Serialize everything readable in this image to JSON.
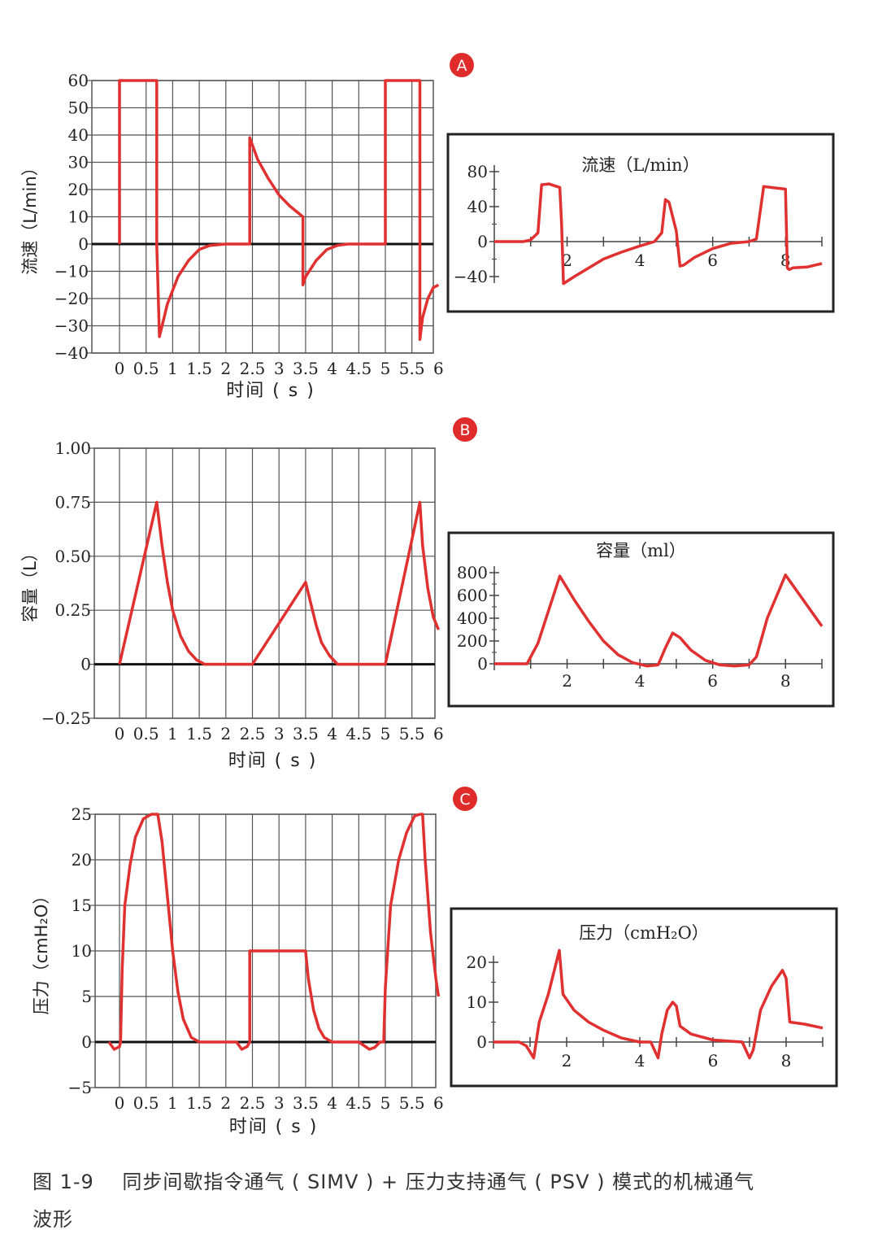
{
  "colors": {
    "trace": "#e03030",
    "grid": "#555555",
    "zero": "#111111",
    "badge": "#e02b2b",
    "text": "#222222"
  },
  "caption": {
    "label": "图 1-9",
    "line1": "同步间歇指令通气 ( SIMV ) + 压力支持通气 ( PSV ) 模式的机械通气",
    "line2": "波形"
  },
  "chart_data": [
    {
      "id": "A-left",
      "badge": "A",
      "type": "line",
      "title": "",
      "xlabel": "时间 ( s )",
      "ylabel": "流速（L/min）",
      "xlim": [
        -0.5,
        6
      ],
      "ylim": [
        -40,
        60
      ],
      "xticks": [
        0,
        0.5,
        1,
        1.5,
        2,
        2.5,
        3,
        3.5,
        4,
        4.5,
        5,
        5.5,
        6
      ],
      "yticks": [
        60,
        50,
        40,
        30,
        20,
        10,
        0,
        -10,
        -20,
        -30,
        -40
      ],
      "ytick_labels": [
        "60",
        "50",
        "40",
        "30",
        "20",
        "10",
        "0",
        "−10",
        "−20",
        "−30",
        "−40"
      ],
      "grid": true,
      "series": [
        {
          "name": "flow",
          "x": [
            0,
            0,
            0.7,
            0.7,
            0.75,
            0.9,
            1.1,
            1.3,
            1.5,
            1.7,
            2.0,
            2.45,
            2.45,
            2.6,
            2.8,
            3.0,
            3.2,
            3.45,
            3.45,
            3.5,
            3.7,
            3.9,
            4.1,
            4.3,
            4.6,
            5.0,
            5.0,
            5.65,
            5.65,
            5.7,
            5.8,
            5.9,
            6.0
          ],
          "y": [
            0,
            60,
            60,
            0,
            -34,
            -22,
            -12,
            -6,
            -2,
            -0.5,
            0,
            0,
            39,
            31,
            24,
            18,
            14,
            10,
            -15,
            -12,
            -6,
            -2,
            -0.5,
            0,
            0,
            0,
            60,
            60,
            -35,
            -27,
            -20,
            -16,
            -15
          ]
        }
      ]
    },
    {
      "id": "A-right",
      "type": "line",
      "title": "流速（L/min）",
      "xlabel": "",
      "ylabel": "",
      "xlim": [
        0,
        9
      ],
      "ylim": [
        -50,
        90
      ],
      "xticks": [
        1,
        2,
        3,
        4,
        5,
        6,
        7,
        8,
        9
      ],
      "xtick_labels": [
        "2",
        "4",
        "6",
        "8"
      ],
      "xtick_label_values": [
        2,
        4,
        6,
        8
      ],
      "yticks": [
        80,
        40,
        0,
        -40
      ],
      "ytick_labels": [
        "80",
        "40",
        "0",
        "−40"
      ],
      "grid": false,
      "series": [
        {
          "name": "flow",
          "x": [
            0,
            0.8,
            1.0,
            1.2,
            1.3,
            1.5,
            1.8,
            1.85,
            1.9,
            2.2,
            2.6,
            3.0,
            3.5,
            4.0,
            4.4,
            4.6,
            4.7,
            4.8,
            5.0,
            5.1,
            5.2,
            5.5,
            6.0,
            6.5,
            7.0,
            7.2,
            7.4,
            7.6,
            8.0,
            8.05,
            8.1,
            8.2,
            8.6,
            9.0
          ],
          "y": [
            0,
            0,
            2,
            10,
            65,
            66,
            62,
            20,
            -48,
            -40,
            -30,
            -20,
            -12,
            -5,
            0,
            10,
            48,
            45,
            12,
            -28,
            -27,
            -18,
            -8,
            -2,
            0,
            3,
            63,
            62,
            60,
            -30,
            -32,
            -30,
            -29,
            -25
          ]
        }
      ]
    },
    {
      "id": "B-left",
      "badge": "B",
      "type": "line",
      "title": "",
      "xlabel": "时间 ( s )",
      "ylabel": "容量（L）",
      "xlim": [
        -0.5,
        6
      ],
      "ylim": [
        -0.25,
        1.0
      ],
      "xticks": [
        0,
        0.5,
        1,
        1.5,
        2,
        2.5,
        3,
        3.5,
        4,
        4.5,
        5,
        5.5,
        6
      ],
      "yticks": [
        1.0,
        0.75,
        0.5,
        0.25,
        0,
        -0.25
      ],
      "ytick_labels": [
        "1.00",
        "0.75",
        "0.50",
        "0.25",
        "0",
        "−0.25"
      ],
      "grid": true,
      "series": [
        {
          "name": "volume",
          "x": [
            0,
            0.7,
            0.8,
            0.9,
            1.0,
            1.15,
            1.3,
            1.45,
            1.6,
            2.5,
            3.5,
            3.6,
            3.7,
            3.8,
            3.95,
            4.1,
            4.5,
            5.0,
            5.65,
            5.7,
            5.8,
            5.9,
            6.0
          ],
          "y": [
            0,
            0.75,
            0.55,
            0.38,
            0.25,
            0.13,
            0.06,
            0.02,
            0,
            0,
            0.38,
            0.28,
            0.18,
            0.1,
            0.04,
            0,
            0,
            0,
            0.75,
            0.55,
            0.35,
            0.22,
            0.16
          ]
        }
      ]
    },
    {
      "id": "B-right",
      "type": "line",
      "title": "容量（ml）",
      "xlabel": "",
      "ylabel": "",
      "xlim": [
        0,
        9
      ],
      "ylim": [
        -60,
        900
      ],
      "xticks": [
        1,
        2,
        3,
        4,
        5,
        6,
        7,
        8,
        9
      ],
      "xtick_labels": [
        "2",
        "4",
        "6",
        "8"
      ],
      "xtick_label_values": [
        2,
        4,
        6,
        8
      ],
      "yticks": [
        800,
        600,
        400,
        200,
        0
      ],
      "ytick_labels": [
        "800",
        "600",
        "400",
        "200",
        "0"
      ],
      "grid": false,
      "series": [
        {
          "name": "volume",
          "x": [
            0,
            0.9,
            1.2,
            1.8,
            2.2,
            2.6,
            3.0,
            3.4,
            3.8,
            4.2,
            4.5,
            4.7,
            4.9,
            5.1,
            5.4,
            5.8,
            6.2,
            6.6,
            7.0,
            7.2,
            7.5,
            8.0,
            8.4,
            8.8,
            9.0
          ],
          "y": [
            0,
            0,
            180,
            770,
            560,
            370,
            200,
            80,
            10,
            -20,
            -10,
            140,
            270,
            230,
            120,
            30,
            -10,
            -20,
            -10,
            60,
            400,
            780,
            600,
            420,
            330
          ]
        }
      ]
    },
    {
      "id": "C-left",
      "badge": "C",
      "type": "line",
      "title": "",
      "xlabel": "时间 ( s )",
      "ylabel": "压力（cmH₂O）",
      "xlim": [
        -0.5,
        6
      ],
      "ylim": [
        -5,
        25
      ],
      "xticks": [
        0,
        0.5,
        1,
        1.5,
        2,
        2.5,
        3,
        3.5,
        4,
        4.5,
        5,
        5.5,
        6
      ],
      "yticks": [
        25,
        20,
        15,
        10,
        5,
        0,
        -5
      ],
      "ytick_labels": [
        "25",
        "20",
        "15",
        "10",
        "5",
        "0",
        "−5"
      ],
      "grid": true,
      "series": [
        {
          "name": "pressure",
          "x": [
            -0.2,
            -0.1,
            0,
            0.02,
            0.05,
            0.1,
            0.2,
            0.3,
            0.45,
            0.6,
            0.72,
            0.8,
            0.9,
            1.0,
            1.1,
            1.2,
            1.35,
            1.5,
            2.2,
            2.3,
            2.4,
            2.45,
            2.45,
            3.5,
            3.55,
            3.65,
            3.75,
            3.85,
            4.0,
            4.5,
            4.7,
            4.8,
            4.9,
            4.97,
            5.0,
            5.1,
            5.25,
            5.4,
            5.55,
            5.65,
            5.7,
            5.75,
            5.85,
            5.95,
            6.0
          ],
          "y": [
            0,
            -0.8,
            -0.5,
            0,
            8,
            15,
            19.5,
            22.5,
            24.5,
            25,
            25,
            22,
            16,
            10,
            5.5,
            2.5,
            0.5,
            0,
            0,
            -0.8,
            -0.5,
            0,
            10,
            10,
            7,
            3.5,
            1.5,
            0.5,
            0,
            0,
            -0.8,
            -0.6,
            0,
            0,
            6,
            15,
            20,
            23,
            24.8,
            25,
            25,
            20,
            12,
            7,
            5
          ]
        }
      ]
    },
    {
      "id": "C-right",
      "type": "line",
      "title": "压力（cmH₂O）",
      "xlabel": "",
      "ylabel": "",
      "xlim": [
        0,
        9
      ],
      "ylim": [
        -6,
        25
      ],
      "xticks": [
        1,
        2,
        3,
        4,
        5,
        6,
        7,
        8,
        9
      ],
      "xtick_labels": [
        "2",
        "4",
        "6",
        "8"
      ],
      "xtick_label_values": [
        2,
        4,
        6,
        8
      ],
      "yticks": [
        20,
        10,
        0
      ],
      "ytick_labels": [
        "20",
        "10",
        "0"
      ],
      "grid": false,
      "series": [
        {
          "name": "pressure",
          "x": [
            0,
            0.7,
            0.9,
            1.1,
            1.25,
            1.5,
            1.8,
            1.9,
            2.2,
            2.6,
            3.0,
            3.5,
            4.0,
            4.3,
            4.5,
            4.6,
            4.75,
            4.9,
            5.0,
            5.1,
            5.4,
            6.0,
            6.8,
            7.0,
            7.1,
            7.3,
            7.6,
            7.9,
            8.0,
            8.1,
            8.5,
            9.0
          ],
          "y": [
            0,
            0,
            -1,
            -4,
            5,
            12,
            23,
            12,
            8,
            5,
            3,
            1,
            0,
            0,
            -4,
            2,
            8,
            10,
            9,
            4,
            2,
            0.5,
            0,
            -4,
            -2,
            8,
            14,
            18,
            16,
            5,
            4.5,
            3.5
          ]
        }
      ]
    }
  ]
}
